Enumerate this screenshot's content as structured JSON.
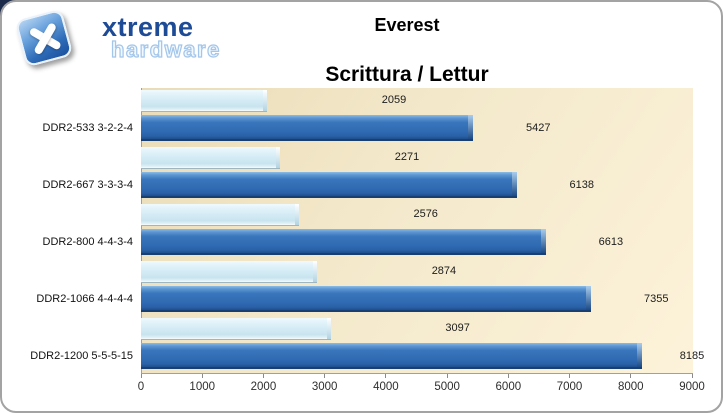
{
  "logo": {
    "icon": "x-tile-icon",
    "brand_line1": "xtreme",
    "brand_line2": "hardware"
  },
  "header": {
    "title": "Everest"
  },
  "chart_data": {
    "type": "bar",
    "orientation": "horizontal",
    "title": "Scrittura / Lettur",
    "categories": [
      "DDR2-533 3-2-2-4",
      "DDR2-667 3-3-3-4",
      "DDR2-800 4-4-3-4",
      "DDR2-1066 4-4-4-4",
      "DDR2-1200 5-5-5-15"
    ],
    "series": [
      {
        "name": "Scrittura",
        "color": "#d4ebf5",
        "values": [
          2059,
          2271,
          2576,
          2874,
          3097
        ]
      },
      {
        "name": "Lettur",
        "color": "#2f6ab2",
        "values": [
          5427,
          6138,
          6613,
          7355,
          8185
        ]
      }
    ],
    "xlim": [
      0,
      9000
    ],
    "x_ticks": [
      0,
      1000,
      2000,
      3000,
      4000,
      5000,
      6000,
      7000,
      8000,
      9000
    ],
    "grid": false,
    "legend": "none",
    "value_labels": true,
    "plot_bg": "#f6ebcd"
  },
  "colors": {
    "page_bg": "#ffffff",
    "card_border": "#a3a3a3",
    "corner_accent": "#1c2b4a",
    "title_text": "#000000",
    "axis_text": "#2e2e2e"
  }
}
